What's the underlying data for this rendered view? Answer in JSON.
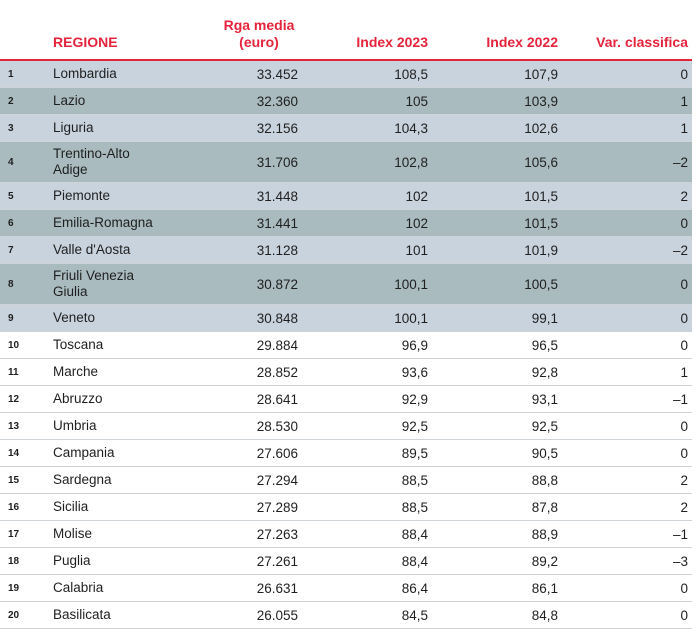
{
  "headers": {
    "region": "REGIONE",
    "rga": [
      "Rga media",
      "(euro)"
    ],
    "index2023": "Index 2023",
    "index2022": "Index 2022",
    "var": "Var. classifica"
  },
  "colors": {
    "accent": "#e5233b",
    "shade_light": "#c8d3de",
    "shade_dark": "#a9bbbf",
    "text": "#1f1f1f",
    "row_border": "#cfd4d9"
  },
  "rows": [
    {
      "rank": "1",
      "region": [
        "Lombardia"
      ],
      "rga": "33.452",
      "i2023": "108,5",
      "i2022": "107,9",
      "var": "0"
    },
    {
      "rank": "2",
      "region": [
        "Lazio"
      ],
      "rga": "32.360",
      "i2023": "105",
      "i2022": "103,9",
      "var": "1"
    },
    {
      "rank": "3",
      "region": [
        "Liguria"
      ],
      "rga": "32.156",
      "i2023": "104,3",
      "i2022": "102,6",
      "var": "1"
    },
    {
      "rank": "4",
      "region": [
        "Trentino-Alto",
        "Adige"
      ],
      "rga": "31.706",
      "i2023": "102,8",
      "i2022": "105,6",
      "var": "–2"
    },
    {
      "rank": "5",
      "region": [
        "Piemonte"
      ],
      "rga": "31.448",
      "i2023": "102",
      "i2022": "101,5",
      "var": "2"
    },
    {
      "rank": "6",
      "region": [
        "Emilia-Romagna"
      ],
      "rga": "31.441",
      "i2023": "102",
      "i2022": "101,5",
      "var": "0"
    },
    {
      "rank": "7",
      "region": [
        "Valle d'Aosta"
      ],
      "rga": "31.128",
      "i2023": "101",
      "i2022": "101,9",
      "var": "–2"
    },
    {
      "rank": "8",
      "region": [
        "Friuli Venezia",
        "Giulia"
      ],
      "rga": "30.872",
      "i2023": "100,1",
      "i2022": "100,5",
      "var": "0"
    },
    {
      "rank": "9",
      "region": [
        "Veneto"
      ],
      "rga": "30.848",
      "i2023": "100,1",
      "i2022": "99,1",
      "var": "0"
    },
    {
      "rank": "10",
      "region": [
        "Toscana"
      ],
      "rga": "29.884",
      "i2023": "96,9",
      "i2022": "96,5",
      "var": "0"
    },
    {
      "rank": "11",
      "region": [
        "Marche"
      ],
      "rga": "28.852",
      "i2023": "93,6",
      "i2022": "92,8",
      "var": "1"
    },
    {
      "rank": "12",
      "region": [
        "Abruzzo"
      ],
      "rga": "28.641",
      "i2023": "92,9",
      "i2022": "93,1",
      "var": "–1"
    },
    {
      "rank": "13",
      "region": [
        "Umbria"
      ],
      "rga": "28.530",
      "i2023": "92,5",
      "i2022": "92,5",
      "var": "0"
    },
    {
      "rank": "14",
      "region": [
        "Campania"
      ],
      "rga": "27.606",
      "i2023": "89,5",
      "i2022": "90,5",
      "var": "0"
    },
    {
      "rank": "15",
      "region": [
        "Sardegna"
      ],
      "rga": "27.294",
      "i2023": "88,5",
      "i2022": "88,8",
      "var": "2"
    },
    {
      "rank": "16",
      "region": [
        "Sicilia"
      ],
      "rga": "27.289",
      "i2023": "88,5",
      "i2022": "87,8",
      "var": "2"
    },
    {
      "rank": "17",
      "region": [
        "Molise"
      ],
      "rga": "27.263",
      "i2023": "88,4",
      "i2022": "88,9",
      "var": "–1"
    },
    {
      "rank": "18",
      "region": [
        "Puglia"
      ],
      "rga": "27.261",
      "i2023": "88,4",
      "i2022": "89,2",
      "var": "–3"
    },
    {
      "rank": "19",
      "region": [
        "Calabria"
      ],
      "rga": "26.631",
      "i2023": "86,4",
      "i2022": "86,1",
      "var": "0"
    },
    {
      "rank": "20",
      "region": [
        "Basilicata"
      ],
      "rga": "26.055",
      "i2023": "84,5",
      "i2022": "84,8",
      "var": "0"
    }
  ]
}
